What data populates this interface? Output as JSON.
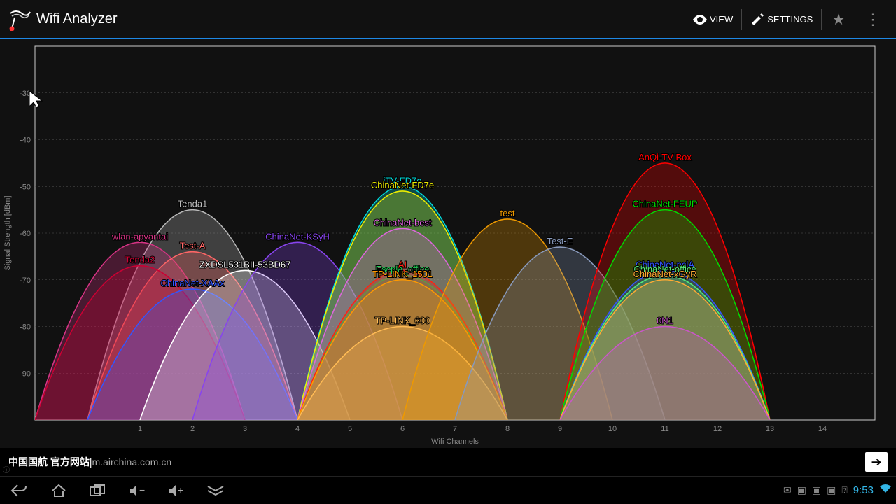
{
  "appbar": {
    "title": "Wifi Analyzer",
    "view_label": "VIEW",
    "settings_label": "SETTINGS"
  },
  "chart": {
    "type": "wifi-channel-parabola",
    "background_color": "#111111",
    "grid_color": "#555555",
    "axis_color": "#cccccc",
    "x_label": "Wifi Channels",
    "y_label": "Signal Strength [dBm]",
    "label_fontsize": 11,
    "label_color": "#888888",
    "x_ticks": [
      1,
      2,
      3,
      4,
      5,
      6,
      7,
      8,
      9,
      10,
      11,
      12,
      13,
      14
    ],
    "y_ticks": [
      -30,
      -40,
      -50,
      -60,
      -70,
      -80,
      -90
    ],
    "y_min": -100,
    "y_max": -20,
    "channel_half_width": 2,
    "fill_opacity": 0.28,
    "networks": [
      {
        "ssid": "Tenda1",
        "channel": 2,
        "dbm": -55,
        "color": "#bbbbbb"
      },
      {
        "ssid": "wlan-apyantai",
        "channel": 1,
        "dbm": -62,
        "color": "#d63384"
      },
      {
        "ssid": "Test-A",
        "channel": 2,
        "dbm": -64,
        "color": "#ff6666"
      },
      {
        "ssid": "Tenda2",
        "channel": 1,
        "dbm": -67,
        "color": "#cc0033"
      },
      {
        "ssid": "ChinaNet-XAAx",
        "channel": 2,
        "dbm": -72,
        "color": "#3355ff"
      },
      {
        "ssid": "ZXDSL531BII-53BD67",
        "channel": 3,
        "dbm": -68,
        "color": "#ffffff"
      },
      {
        "ssid": "ChinaNet-KSyH",
        "channel": 4,
        "dbm": -62,
        "color": "#8844ee"
      },
      {
        "ssid": "iTV-FD7e",
        "channel": 6,
        "dbm": -50,
        "color": "#00dddd"
      },
      {
        "ssid": "ChinaNet-FD7e",
        "channel": 6,
        "dbm": -51,
        "color": "#eeee00"
      },
      {
        "ssid": "ChinaNet-best",
        "channel": 6,
        "dbm": -59,
        "color": "#dd66dd"
      },
      {
        "ssid": "Escpla_office",
        "channel": 6,
        "dbm": -69,
        "color": "#22cc55"
      },
      {
        "ssid": "AI",
        "channel": 6,
        "dbm": -68,
        "color": "#ff2211"
      },
      {
        "ssid": "TP-LINK_1501",
        "channel": 6,
        "dbm": -70,
        "color": "#ff9900"
      },
      {
        "ssid": "TP-LINK_600",
        "channel": 6,
        "dbm": -80,
        "color": "#ffbb55"
      },
      {
        "ssid": "test",
        "channel": 8,
        "dbm": -57,
        "color": "#ee9900"
      },
      {
        "ssid": "Test-E",
        "channel": 9,
        "dbm": -63,
        "color": "#8899bb"
      },
      {
        "ssid": "AnQi-TV Box",
        "channel": 11,
        "dbm": -45,
        "color": "#ff0000"
      },
      {
        "ssid": "ChinaNet-FEUP",
        "channel": 11,
        "dbm": -55,
        "color": "#00dd00"
      },
      {
        "ssid": "ChinaNet-nclA",
        "channel": 11,
        "dbm": -68,
        "color": "#3355ff"
      },
      {
        "ssid": "ChinaNet-office",
        "channel": 11,
        "dbm": -69,
        "color": "#55ee77"
      },
      {
        "ssid": "ChinaNet-xGyR",
        "channel": 11,
        "dbm": -70,
        "color": "#ffaa33"
      },
      {
        "ssid": "0N1",
        "channel": 11,
        "dbm": -80,
        "color": "#cc55cc"
      }
    ]
  },
  "ad": {
    "text_bold": "中国国航 官方网站",
    "separator": " | ",
    "url": "m.airchina.com.cn"
  },
  "statusbar": {
    "clock": "9:53"
  }
}
